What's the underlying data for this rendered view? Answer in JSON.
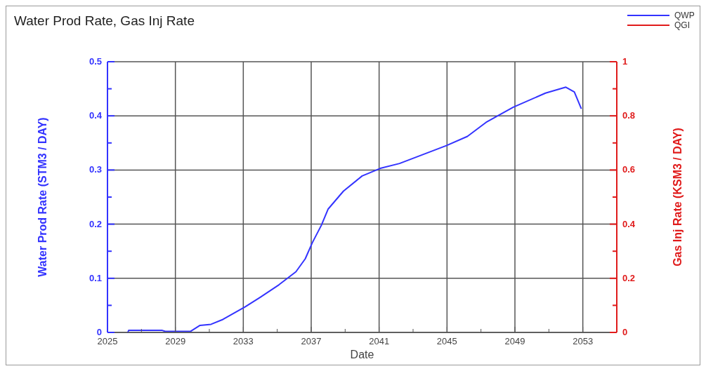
{
  "chart_data": {
    "type": "line",
    "title": "Water Prod Rate, Gas Inj Rate",
    "xlabel": "Date",
    "ylabel": "Water Prod Rate (STM3 / DAY)",
    "y2label": "Gas Inj Rate (KSM3 / DAY)",
    "xlim": [
      2025,
      2055
    ],
    "xticks": [
      2025,
      {
        "value": 2027,
        "label": null
      },
      2029,
      {
        "value": 2031,
        "label": null
      },
      2033,
      {
        "value": 2035,
        "label": null
      },
      2037,
      {
        "value": 2039,
        "label": null
      },
      2041,
      {
        "value": 2043,
        "label": null
      },
      2045,
      {
        "value": 2047,
        "label": null
      },
      2049,
      {
        "value": 2051,
        "label": null
      },
      2053
    ],
    "ylim": [
      0,
      0.5
    ],
    "yticks": [
      0,
      {
        "value": 0.05,
        "label": null
      },
      0.1,
      {
        "value": 0.15,
        "label": null
      },
      0.2,
      {
        "value": 0.25,
        "label": null
      },
      0.3,
      {
        "value": 0.35,
        "label": null
      },
      0.4,
      {
        "value": 0.45,
        "label": null
      },
      0.5
    ],
    "y2lim": [
      0,
      1
    ],
    "y2ticks": [
      0,
      {
        "value": 0.1,
        "label": null
      },
      0.2,
      {
        "value": 0.3,
        "label": null
      },
      0.4,
      {
        "value": 0.5,
        "label": null
      },
      0.6,
      {
        "value": 0.7,
        "label": null
      },
      0.8,
      {
        "value": 0.9,
        "label": null
      },
      1
    ],
    "grid": true,
    "legend": "top right",
    "line_style": "solid",
    "series": [
      {
        "name": "QWP",
        "color": "#3333ff",
        "x": [
          2026.2,
          2026.25,
          2028.2,
          2028.4,
          2029.9,
          2030.45,
          2031.1,
          2031.8,
          2033.1,
          2034.0,
          2035.1,
          2036.1,
          2036.65,
          2037.07,
          2037.6,
          2038.0,
          2038.9,
          2040.0,
          2041.07,
          2042.2,
          2044.96,
          2046.2,
          2047.3,
          2048.9,
          2050.8,
          2052.0,
          2052.5,
          2052.9
        ],
        "values": [
          0,
          0.004,
          0.004,
          0.002,
          0.002,
          0.013,
          0.015,
          0.024,
          0.047,
          0.065,
          0.088,
          0.112,
          0.136,
          0.166,
          0.198,
          0.228,
          0.261,
          0.289,
          0.303,
          0.312,
          0.345,
          0.362,
          0.388,
          0.416,
          0.442,
          0.453,
          0.444,
          0.414
        ]
      },
      {
        "name": "QGI",
        "color": "#e01b1b",
        "axis": "y2"
      }
    ]
  }
}
